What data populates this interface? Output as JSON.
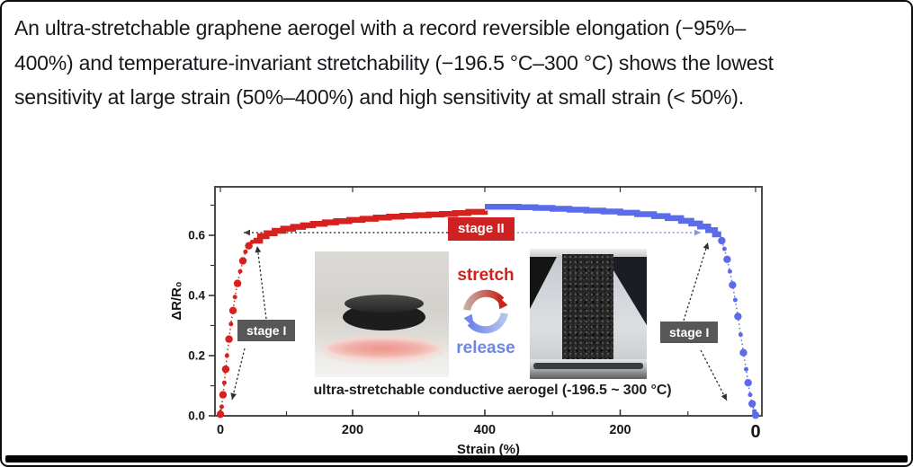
{
  "text": {
    "lines": [
      "An ultra-stretchable graphene aerogel with a record reversible elongation (−95%–",
      "400%) and temperature-invariant stretchability (−196.5 °C–300 °C) shows the lowest",
      "sensitivity at large strain (50%–400%) and high sensitivity at small strain (< 50%)."
    ]
  },
  "figure": {
    "stage2_label": "stage II",
    "stage1_left_label": "stage I",
    "stage1_right_label": "stage I",
    "stretch_label": "stretch",
    "release_label": "release",
    "caption": "ultra-stretchable conductive aerogel (-196.5 ~ 300 °C)",
    "insets": {
      "left_photo": "lightweight black aerogel disk resting on a pink feather",
      "right_photo": "stretched black conductive aerogel column held in test grips"
    },
    "colors": {
      "stretch_red": "#d6221f",
      "release_blue": "#5b6ceb",
      "stage2_box": "#ce2121",
      "stage1_box": "#575757",
      "axis": "#4a4a4a"
    }
  },
  "chart_data": {
    "type": "line",
    "title": "",
    "xlabel": "Strain (%)",
    "ylabel": "ΔR/R₀",
    "x_axis_note": "folded axis: strain increases 0→400% (stretch, red) then decreases 400→0% (release, blue)",
    "ylim": [
      0,
      0.76
    ],
    "grid": false,
    "x_ticks": [
      {
        "label": "0",
        "strain": 0,
        "phase": "stretch"
      },
      {
        "label": "200",
        "strain": 200,
        "phase": "stretch"
      },
      {
        "label": "400",
        "strain": 400,
        "phase": "stretch"
      },
      {
        "label": "200",
        "strain": 200,
        "phase": "release"
      },
      {
        "label": "0",
        "strain": 0,
        "phase": "release",
        "emphasis": true
      }
    ],
    "x_minor_ticks": [
      {
        "strain": 100,
        "phase": "stretch"
      },
      {
        "strain": 300,
        "phase": "stretch"
      },
      {
        "strain": 300,
        "phase": "release"
      },
      {
        "strain": 100,
        "phase": "release"
      }
    ],
    "y_ticks": [
      {
        "label": "0.0",
        "value": 0.0
      },
      {
        "label": "0.2",
        "value": 0.2
      },
      {
        "label": "0.4",
        "value": 0.4
      },
      {
        "label": "0.6",
        "value": 0.6
      }
    ],
    "y_minor_ticks": [
      0.1,
      0.3,
      0.5,
      0.7
    ],
    "series": [
      {
        "name": "stretch",
        "phase": "stretch",
        "color": "#d6221f",
        "dots": [
          [
            0,
            0.005
          ],
          [
            2,
            0.03
          ],
          [
            4,
            0.07
          ],
          [
            6,
            0.11
          ],
          [
            8,
            0.155
          ],
          [
            10,
            0.2
          ],
          [
            13,
            0.255
          ],
          [
            16,
            0.305
          ],
          [
            19,
            0.35
          ],
          [
            22,
            0.395
          ],
          [
            26,
            0.44
          ],
          [
            30,
            0.48
          ],
          [
            34,
            0.515
          ],
          [
            38,
            0.545
          ],
          [
            43,
            0.565
          ],
          [
            48,
            0.578
          ]
        ],
        "line": [
          [
            50,
            0.582
          ],
          [
            60,
            0.597
          ],
          [
            70,
            0.607
          ],
          [
            82,
            0.615
          ],
          [
            95,
            0.622
          ],
          [
            110,
            0.628
          ],
          [
            125,
            0.633
          ],
          [
            140,
            0.638
          ],
          [
            158,
            0.643
          ],
          [
            175,
            0.647
          ],
          [
            195,
            0.651
          ],
          [
            215,
            0.655
          ],
          [
            235,
            0.659
          ],
          [
            255,
            0.662
          ],
          [
            275,
            0.665
          ],
          [
            295,
            0.667
          ],
          [
            315,
            0.669
          ],
          [
            335,
            0.671
          ],
          [
            355,
            0.674
          ],
          [
            375,
            0.678
          ],
          [
            400,
            0.682
          ]
        ]
      },
      {
        "name": "release",
        "phase": "release",
        "color": "#5b6ceb",
        "line": [
          [
            400,
            0.695
          ],
          [
            375,
            0.695
          ],
          [
            350,
            0.693
          ],
          [
            325,
            0.691
          ],
          [
            300,
            0.688
          ],
          [
            275,
            0.685
          ],
          [
            250,
            0.682
          ],
          [
            225,
            0.679
          ],
          [
            200,
            0.675
          ],
          [
            175,
            0.67
          ],
          [
            150,
            0.664
          ],
          [
            130,
            0.657
          ],
          [
            110,
            0.648
          ],
          [
            95,
            0.639
          ],
          [
            82,
            0.629
          ],
          [
            70,
            0.617
          ],
          [
            60,
            0.603
          ],
          [
            55,
            0.594
          ]
        ],
        "dots": [
          [
            50,
            0.582
          ],
          [
            46,
            0.555
          ],
          [
            42,
            0.52
          ],
          [
            38,
            0.48
          ],
          [
            34,
            0.435
          ],
          [
            30,
            0.385
          ],
          [
            26,
            0.33
          ],
          [
            22,
            0.27
          ],
          [
            18,
            0.21
          ],
          [
            14,
            0.155
          ],
          [
            11,
            0.11
          ],
          [
            8,
            0.07
          ],
          [
            5,
            0.04
          ],
          [
            2,
            0.015
          ],
          [
            0,
            0.002
          ]
        ]
      }
    ],
    "annotations": [
      "stage I (steep, high-sensitivity region at < 50% strain, both sides)",
      "stage II (flat, low-sensitivity region spanning 50%–400% strain)"
    ]
  }
}
